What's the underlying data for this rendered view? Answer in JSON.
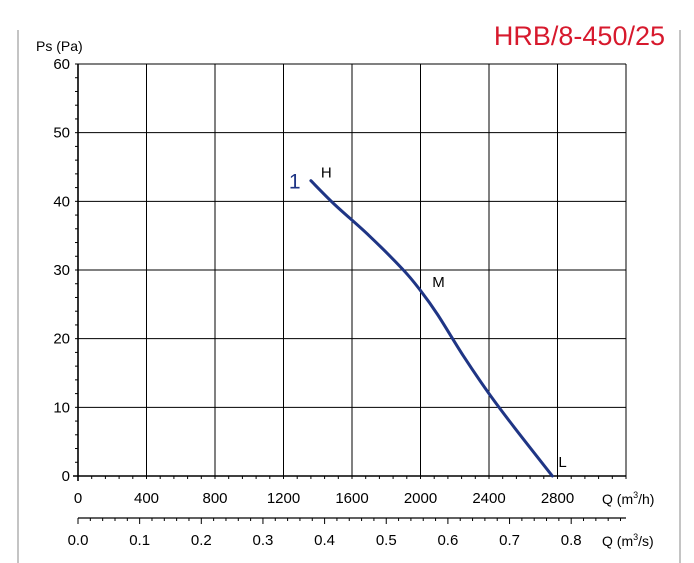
{
  "model_title": "HRB/8-450/25",
  "colors": {
    "title": "#d7192d",
    "curve": "#1f3585",
    "curve_label": "#1f3585",
    "axis": "#000000",
    "grid": "#000000",
    "border": "#8a8a8a"
  },
  "chart_data": {
    "type": "line",
    "title": "HRB/8-450/25",
    "ylabel": "Ps (Pa)",
    "xlabel": "Q (m3/h)",
    "xlabel_secondary": "Q (m3/s)",
    "ylim": [
      0,
      60
    ],
    "xlim": [
      0,
      3200
    ],
    "xlim_secondary": [
      0,
      0.8889
    ],
    "grid": true,
    "y_ticks": [
      "0",
      "10",
      "20",
      "30",
      "40",
      "50",
      "60"
    ],
    "x_ticks": [
      "0",
      "400",
      "800",
      "1200",
      "1600",
      "2000",
      "2400",
      "2800"
    ],
    "x_ticks_secondary": [
      "0.0",
      "0.1",
      "0.2",
      "0.3",
      "0.4",
      "0.5",
      "0.6",
      "0.7",
      "0.8"
    ],
    "x_label_main": "Q (m",
    "x_label_main_unit": "/h)",
    "x_label_secondary": "Q (m",
    "x_label_secondary_unit": "/s)",
    "x_label_sup": "3",
    "series": [
      {
        "name": "1",
        "x": [
          1360,
          1500,
          1700,
          1900,
          2000,
          2100,
          2250,
          2400,
          2550,
          2770
        ],
        "y": [
          43,
          39.5,
          35,
          30,
          27,
          23.5,
          17.5,
          12,
          7,
          0
        ]
      }
    ],
    "annotations": [
      {
        "text": "H",
        "x": 1360,
        "y": 43
      },
      {
        "text": "M",
        "x": 2010,
        "y": 27.5
      },
      {
        "text": "L",
        "x": 2770,
        "y": 0
      }
    ]
  }
}
